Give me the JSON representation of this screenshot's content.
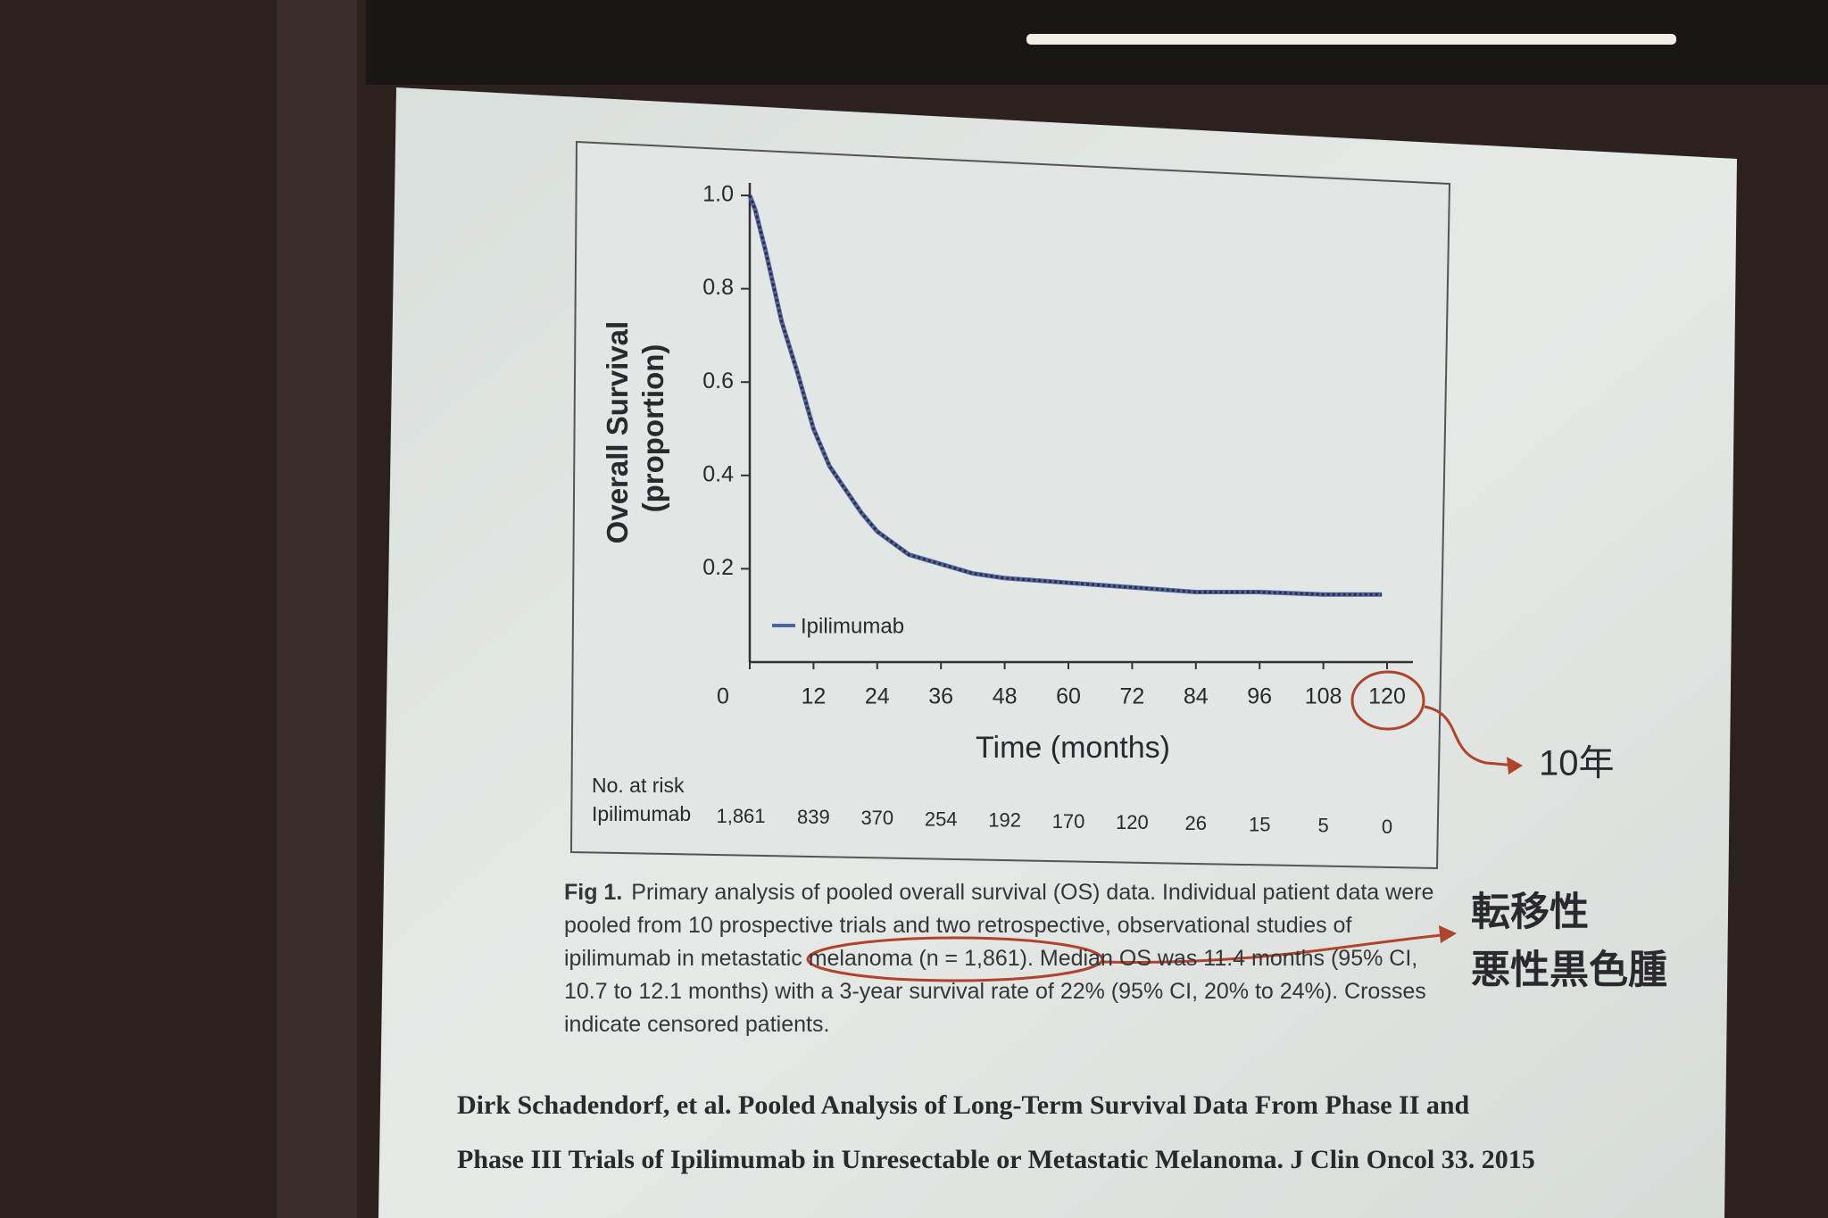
{
  "chart_data": {
    "type": "line",
    "ylabel": [
      "Overall Survival",
      "(proportion)"
    ],
    "xlabel": "Time (months)",
    "x": [
      0,
      1,
      3,
      6,
      9,
      12,
      15,
      18,
      21,
      24,
      30,
      36,
      42,
      48,
      60,
      72,
      84,
      96,
      108,
      119
    ],
    "series": [
      {
        "name": "Ipilimumab",
        "color": "#4a64a8",
        "values": [
          1.0,
          0.97,
          0.88,
          0.73,
          0.62,
          0.5,
          0.42,
          0.37,
          0.32,
          0.28,
          0.23,
          0.21,
          0.19,
          0.18,
          0.17,
          0.16,
          0.15,
          0.15,
          0.145,
          0.145
        ]
      }
    ],
    "xlim": [
      0,
      120
    ],
    "xticks": [
      0,
      12,
      24,
      36,
      48,
      60,
      72,
      84,
      96,
      108,
      120
    ],
    "ylim": [
      0,
      1.0
    ],
    "yticks": [
      0.2,
      0.4,
      0.6,
      0.8,
      {
        "value": 1.0,
        "label": "1.0"
      }
    ],
    "legend": "lower left",
    "at_risk": {
      "title": "No. at risk",
      "label": "Ipilimumab",
      "values": [
        1861,
        839,
        370,
        254,
        192,
        170,
        120,
        26,
        15,
        5,
        0
      ],
      "value_labels": [
        "1,861",
        "839",
        "370",
        "254",
        "192",
        "170",
        "120",
        "26",
        "15",
        "5",
        "0"
      ]
    },
    "caption": {
      "label": "Fig 1.",
      "text": "Primary analysis of pooled overall survival (OS) data. Individual patient data were pooled from 10 prospective trials and two retrospective, observational studies of ipilimumab in metastatic melanoma (n = 1,861). Median OS was 11.4 months (95% CI, 10.7 to 12.1 months) with a 3-year survival rate of 22% (95% CI, 20% to 24%). Crosses indicate censored patients."
    },
    "citation": [
      "Dirk Schadendorf, et al. Pooled Analysis of Long-Term Survival Data From Phase II and",
      "Phase III Trials of Ipilimumab in Unresectable or Metastatic Melanoma. J Clin Oncol 33. 2015"
    ],
    "annotations": [
      "10年",
      "転移性",
      "悪性黒色腫"
    ]
  }
}
